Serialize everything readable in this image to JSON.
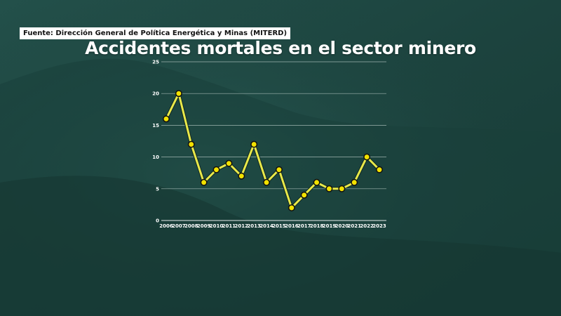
{
  "source": "Fuente: Dirección General de Política Energética y Minas (MITERD)",
  "chart_data": {
    "type": "line",
    "title": "Accidentes mortales en el sector minero",
    "x": [
      "2006",
      "2007",
      "2008",
      "2009",
      "2010",
      "2011",
      "2012",
      "2013",
      "2014",
      "2015",
      "2016",
      "2017",
      "2018",
      "2019",
      "2020",
      "2021",
      "2022",
      "2023"
    ],
    "series": [
      {
        "values": [
          16,
          20,
          12,
          6,
          8,
          9,
          7,
          12,
          6,
          8,
          2,
          4,
          6,
          5,
          5,
          6,
          10,
          8
        ]
      }
    ],
    "ylim": [
      0,
      25
    ],
    "yticks": [
      0,
      5,
      10,
      15,
      20,
      25
    ],
    "grid": true,
    "colors": {
      "line": "#e8e84a",
      "marker": "#f2e200",
      "background": "#1f4540"
    }
  }
}
